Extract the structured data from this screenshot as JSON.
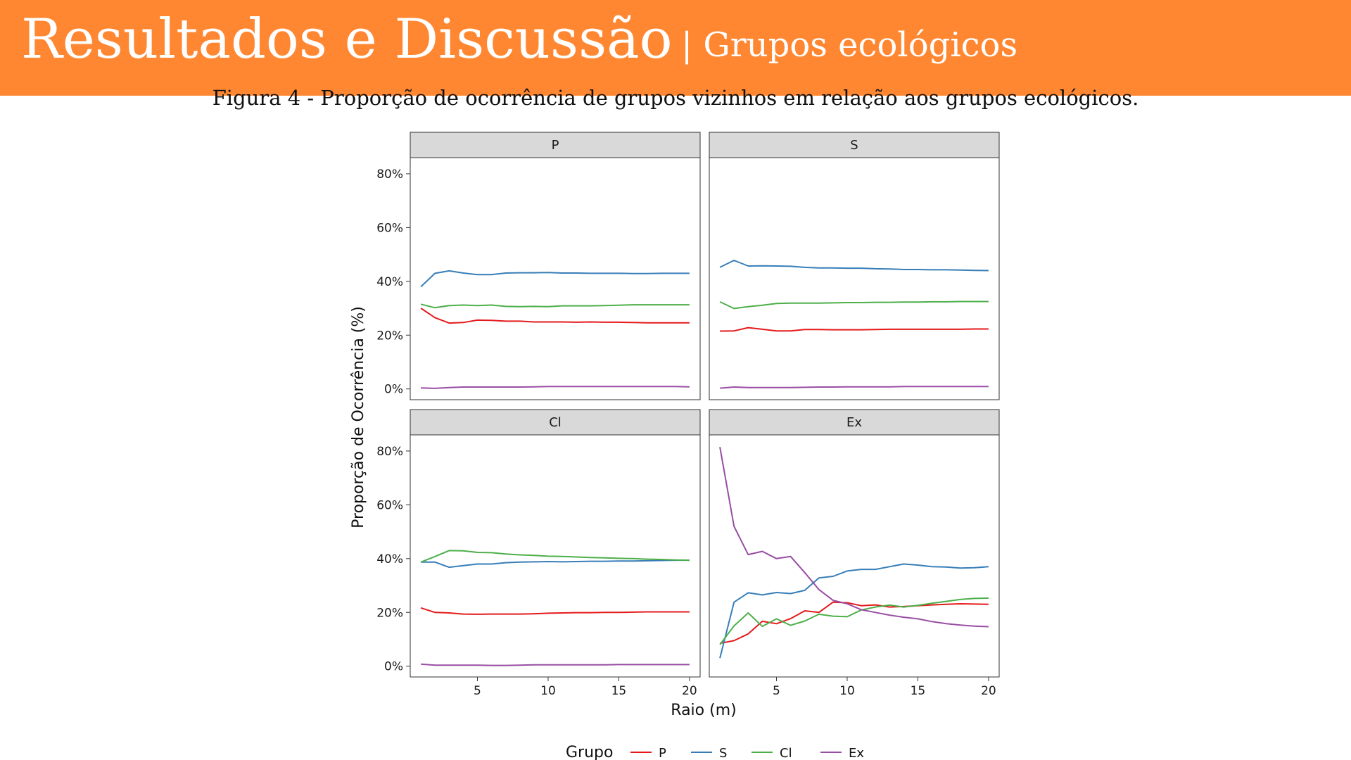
{
  "slide": {
    "title": "Resultados e Discussão",
    "subtitle": "| Grupos ecológicos",
    "caption": "Figura 4 - Proporção de ocorrência de grupos vizinhos em relação aos grupos ecológicos.",
    "header_color": "#FF8732"
  },
  "chart_data": {
    "type": "line",
    "facet_layout": "2x2",
    "xlabel": "Raio (m)",
    "ylabel": "Proporção de Ocorrência (%)",
    "xticks": [
      5,
      10,
      15,
      20
    ],
    "yticks": [
      "0%",
      "20%",
      "40%",
      "60%",
      "80%"
    ],
    "xlim": [
      0.25,
      20.75
    ],
    "ylim": [
      -4,
      86
    ],
    "legend": {
      "title": "Grupo",
      "position": "bottom"
    },
    "x": [
      1,
      2,
      3,
      4,
      5,
      6,
      7,
      8,
      9,
      10,
      11,
      12,
      13,
      14,
      15,
      16,
      17,
      18,
      19,
      20
    ],
    "colors": {
      "P": "#E41A1C",
      "S": "#377EB8",
      "Cl": "#4DAF4A",
      "Ex": "#984EA3"
    },
    "panels": [
      {
        "name": "P",
        "series": [
          {
            "name": "P",
            "values": [
              30,
              26.5,
              24.5,
              24.7,
              25.6,
              25.5,
              25.2,
              25.2,
              24.9,
              24.9,
              24.9,
              24.8,
              24.9,
              24.8,
              24.8,
              24.7,
              24.6,
              24.6,
              24.6,
              24.6
            ]
          },
          {
            "name": "S",
            "values": [
              38,
              43,
              43.9,
              43.1,
              42.5,
              42.5,
              43.1,
              43.2,
              43.2,
              43.3,
              43.1,
              43.1,
              43,
              43,
              43,
              42.9,
              42.9,
              43,
              43,
              43
            ]
          },
          {
            "name": "Cl",
            "values": [
              31.5,
              30.2,
              31,
              31.2,
              31,
              31.2,
              30.7,
              30.6,
              30.7,
              30.6,
              30.9,
              30.9,
              30.9,
              31,
              31.1,
              31.3,
              31.3,
              31.3,
              31.3,
              31.3
            ]
          },
          {
            "name": "Ex",
            "values": [
              0.4,
              0.2,
              0.5,
              0.7,
              0.7,
              0.7,
              0.7,
              0.7,
              0.8,
              0.9,
              0.9,
              0.9,
              0.9,
              0.9,
              0.9,
              0.9,
              0.9,
              0.9,
              0.9,
              0.8
            ]
          }
        ]
      },
      {
        "name": "S",
        "series": [
          {
            "name": "P",
            "values": [
              21.5,
              21.6,
              22.8,
              22.2,
              21.6,
              21.6,
              22.1,
              22.1,
              22,
              22,
              22,
              22.1,
              22.2,
              22.2,
              22.2,
              22.2,
              22.2,
              22.2,
              22.3,
              22.3
            ]
          },
          {
            "name": "S",
            "values": [
              45.2,
              47.8,
              45.7,
              45.8,
              45.7,
              45.6,
              45.2,
              45,
              45,
              44.9,
              44.9,
              44.7,
              44.6,
              44.4,
              44.4,
              44.3,
              44.3,
              44.2,
              44.1,
              44
            ]
          },
          {
            "name": "Cl",
            "values": [
              32.4,
              29.9,
              30.6,
              31.1,
              31.8,
              31.9,
              31.9,
              31.9,
              32,
              32.1,
              32.1,
              32.2,
              32.2,
              32.3,
              32.3,
              32.4,
              32.4,
              32.5,
              32.5,
              32.5
            ]
          },
          {
            "name": "Ex",
            "values": [
              0.3,
              0.7,
              0.5,
              0.5,
              0.5,
              0.5,
              0.6,
              0.7,
              0.7,
              0.8,
              0.8,
              0.8,
              0.8,
              0.9,
              0.9,
              0.9,
              0.9,
              0.9,
              0.9,
              0.9
            ]
          }
        ]
      },
      {
        "name": "Cl",
        "series": [
          {
            "name": "P",
            "values": [
              21.7,
              20,
              19.8,
              19.4,
              19.3,
              19.4,
              19.4,
              19.4,
              19.5,
              19.7,
              19.8,
              19.9,
              19.9,
              20,
              20,
              20.1,
              20.2,
              20.2,
              20.2,
              20.2
            ]
          },
          {
            "name": "S",
            "values": [
              38.7,
              38.7,
              36.8,
              37.4,
              38,
              38,
              38.5,
              38.7,
              38.8,
              38.9,
              38.8,
              38.9,
              39,
              39,
              39.1,
              39.1,
              39.2,
              39.3,
              39.4,
              39.4
            ]
          },
          {
            "name": "Cl",
            "values": [
              38.7,
              40.8,
              43,
              42.9,
              42.3,
              42.2,
              41.7,
              41.4,
              41.2,
              40.9,
              40.8,
              40.6,
              40.4,
              40.3,
              40.1,
              40,
              39.8,
              39.7,
              39.5,
              39.4
            ]
          },
          {
            "name": "Ex",
            "values": [
              0.8,
              0.4,
              0.4,
              0.4,
              0.4,
              0.3,
              0.3,
              0.4,
              0.5,
              0.5,
              0.5,
              0.5,
              0.5,
              0.5,
              0.6,
              0.6,
              0.6,
              0.6,
              0.6,
              0.6
            ]
          }
        ]
      },
      {
        "name": "Ex",
        "series": [
          {
            "name": "P",
            "values": [
              8.5,
              9.5,
              12,
              16.7,
              15.8,
              17.7,
              20.6,
              20,
              23.8,
              23.6,
              22.5,
              22.8,
              22,
              22.2,
              22.5,
              22.8,
              23,
              23.2,
              23.1,
              23
            ]
          },
          {
            "name": "S",
            "values": [
              3,
              23.8,
              27.3,
              26.5,
              27.4,
              27,
              28.2,
              32.8,
              33.4,
              35.4,
              36,
              36,
              37,
              38,
              37.6,
              37,
              36.9,
              36.5,
              36.6,
              37
            ]
          },
          {
            "name": "Cl",
            "values": [
              8,
              15,
              19.8,
              14.8,
              17.6,
              15.2,
              16.8,
              19.3,
              18.6,
              18.4,
              20.9,
              22,
              22.7,
              22,
              22.6,
              23.4,
              24.1,
              24.8,
              25.2,
              25.3
            ]
          },
          {
            "name": "Ex",
            "values": [
              81.5,
              52,
              41.5,
              42.7,
              40,
              40.8,
              34.8,
              28.5,
              24.5,
              23.2,
              21,
              20,
              19,
              18.2,
              17.6,
              16.6,
              15.8,
              15.3,
              14.9,
              14.7
            ]
          }
        ]
      }
    ]
  }
}
